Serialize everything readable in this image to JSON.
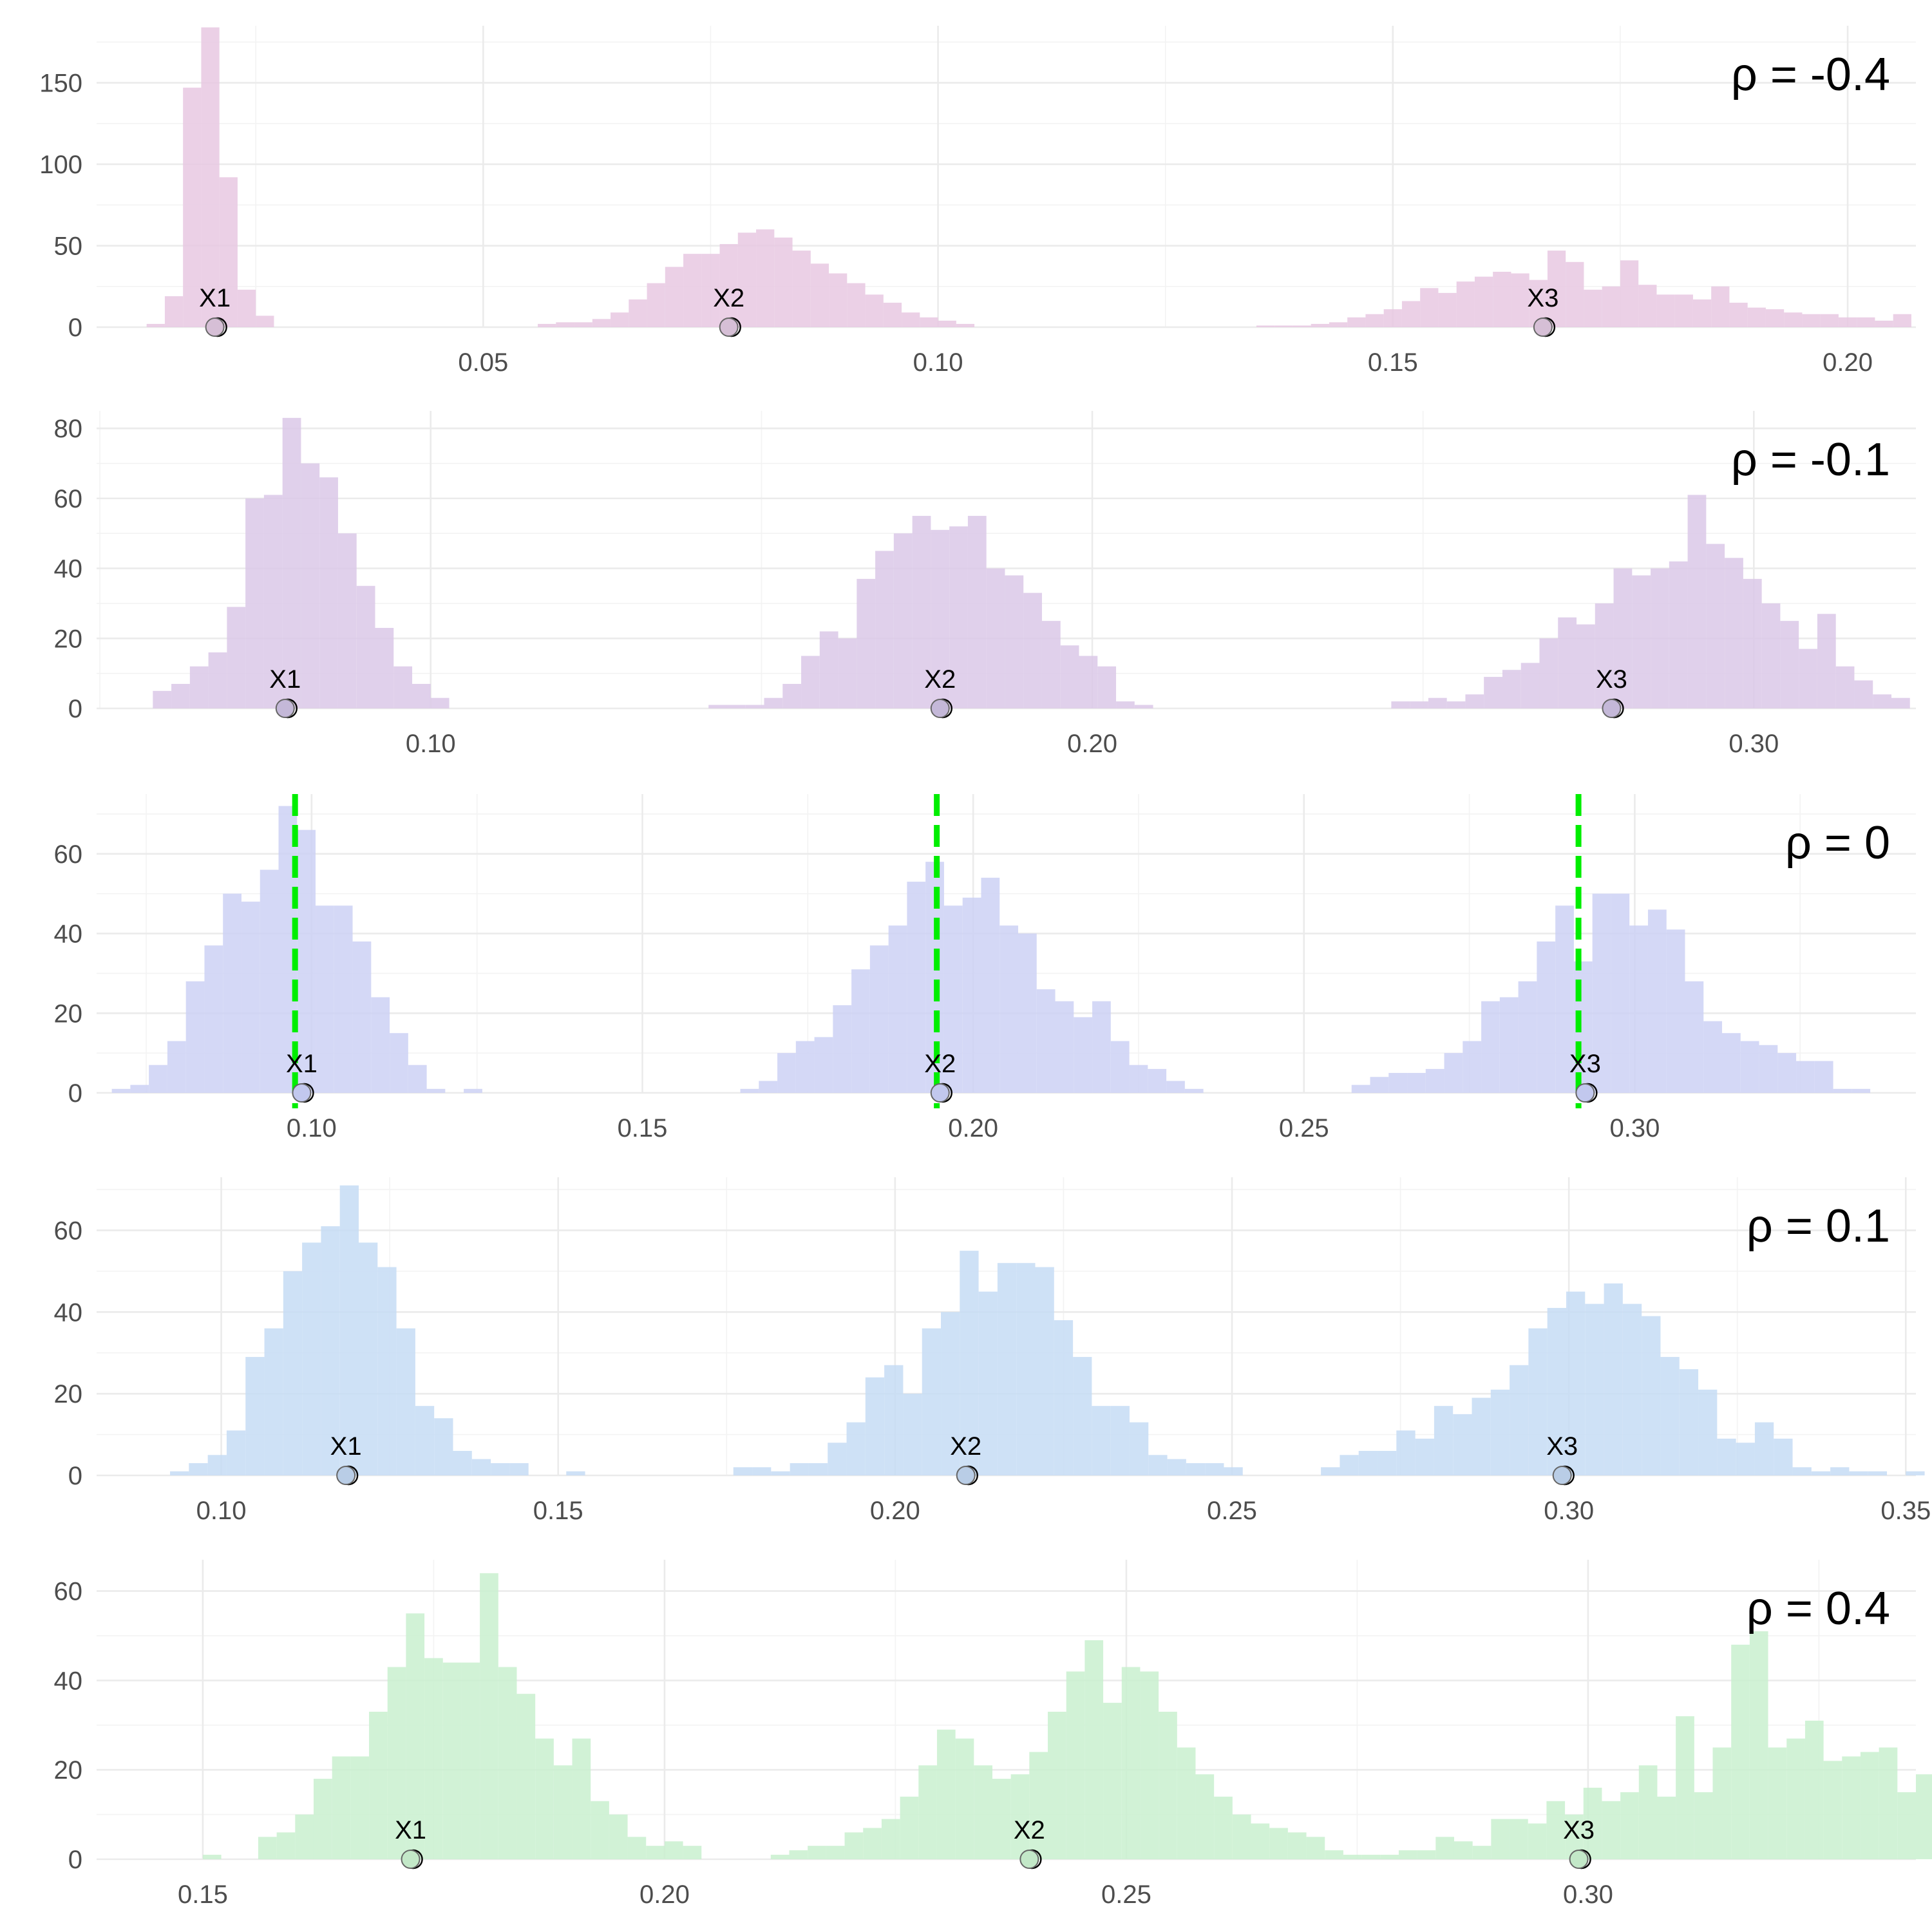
{
  "chart_data": [
    {
      "type": "bar",
      "rho_label": "ρ =  -0.4",
      "color": "#e8c8e2",
      "xlim": [
        0.0075,
        0.2075
      ],
      "ylim": [
        0,
        185
      ],
      "x_ticks": [
        0.05,
        0.1,
        0.15,
        0.2
      ],
      "x_tick_labels": [
        "0.05",
        "0.10",
        "0.15",
        "0.20"
      ],
      "y_ticks": [
        0,
        50,
        100,
        150
      ],
      "y_tick_labels": [
        "0",
        "50",
        "100",
        "150"
      ],
      "bin_width": 0.002,
      "bins": [
        {
          "center": 0.014,
          "values": [
            2,
            19,
            147,
            184,
            92,
            23,
            7
          ]
        },
        {
          "center": 0.057,
          "values": [
            2,
            3,
            3,
            5,
            9,
            17,
            27,
            37,
            45,
            45,
            51,
            58,
            60,
            55,
            47,
            39,
            33,
            27,
            20,
            15,
            9,
            6,
            4,
            2
          ]
        },
        {
          "center": 0.136,
          "values": [
            1,
            1,
            1,
            2,
            3,
            6,
            8,
            11,
            16,
            24,
            21,
            28,
            31,
            34,
            33,
            29,
            47,
            40,
            23,
            25,
            41,
            26,
            20,
            20,
            17,
            25,
            15,
            12,
            11,
            9,
            8,
            8,
            6,
            6,
            4,
            8
          ]
        }
      ],
      "points": [
        {
          "label": "X1",
          "x": 0.0205
        },
        {
          "label": "X2",
          "x": 0.077
        },
        {
          "label": "X3",
          "x": 0.1665
        }
      ],
      "vlines": []
    },
    {
      "type": "bar",
      "rho_label": "ρ =  -0.1",
      "color": "#dac8e8",
      "xlim": [
        0.0495,
        0.3245
      ],
      "ylim": [
        0,
        85
      ],
      "x_ticks": [
        0.1,
        0.2,
        0.3
      ],
      "x_tick_labels": [
        "0.10",
        "0.20",
        "0.30"
      ],
      "y_ticks": [
        0,
        20,
        40,
        60,
        80
      ],
      "y_tick_labels": [
        "0",
        "20",
        "40",
        "60",
        "80"
      ],
      "bin_width": 0.0028,
      "bins": [
        {
          "center": 0.0594,
          "values": [
            5,
            7,
            12,
            16,
            29,
            60,
            61,
            83,
            70,
            66,
            50,
            35,
            23,
            12,
            7,
            3
          ]
        },
        {
          "center": 0.1434,
          "values": [
            1,
            1,
            1,
            3,
            7,
            15,
            22,
            20,
            37,
            45,
            50,
            55,
            51,
            52,
            55,
            40,
            38,
            33,
            25,
            18,
            15,
            12,
            2,
            1
          ]
        },
        {
          "center": 0.2466,
          "values": [
            2,
            2,
            3,
            2,
            4,
            9,
            11,
            13,
            20,
            26,
            24,
            30,
            40,
            38,
            40,
            42,
            61,
            47,
            43,
            37,
            30,
            25,
            17,
            27,
            12,
            8,
            4,
            3
          ]
        }
      ],
      "points": [
        {
          "label": "X1",
          "x": 0.078
        },
        {
          "label": "X2",
          "x": 0.177
        },
        {
          "label": "X3",
          "x": 0.2785
        }
      ],
      "vlines": []
    },
    {
      "type": "bar",
      "rho_label": "ρ =  0",
      "color": "#cdd1f4",
      "xlim": [
        0.0675,
        0.3425
      ],
      "ylim": [
        0,
        75
      ],
      "x_ticks": [
        0.1,
        0.15,
        0.2,
        0.25,
        0.3
      ],
      "x_tick_labels": [
        "0.10",
        "0.15",
        "0.20",
        "0.25",
        "0.30"
      ],
      "y_ticks": [
        0,
        20,
        40,
        60
      ],
      "y_tick_labels": [
        "0",
        "20",
        "40",
        "60"
      ],
      "bin_width": 0.0028,
      "bins": [
        {
          "center": 0.0712,
          "values": [
            1,
            2,
            7,
            13,
            28,
            37,
            50,
            48,
            56,
            72,
            66,
            47,
            47,
            38,
            24,
            15,
            7,
            1,
            0,
            1
          ]
        },
        {
          "center": 0.1662,
          "values": [
            1,
            3,
            10,
            13,
            14,
            22,
            31,
            37,
            42,
            53,
            58,
            47,
            49,
            54,
            42,
            40,
            26,
            23,
            19,
            23,
            13,
            7,
            6,
            3,
            1
          ]
        },
        {
          "center": 0.2586,
          "values": [
            2,
            4,
            5,
            5,
            6,
            10,
            13,
            23,
            24,
            28,
            38,
            47,
            33,
            50,
            50,
            42,
            46,
            41,
            28,
            18,
            15,
            13,
            12,
            10,
            8,
            8,
            1,
            1
          ]
        }
      ],
      "points": [
        {
          "label": "X1",
          "x": 0.0985
        },
        {
          "label": "X2",
          "x": 0.195
        },
        {
          "label": "X3",
          "x": 0.2925
        }
      ],
      "vlines": [
        0.0975,
        0.1945,
        0.2915
      ]
    },
    {
      "type": "bar",
      "rho_label": "ρ =  0.1",
      "color": "#c5dcf4",
      "xlim": [
        0.0815,
        0.3515
      ],
      "ylim": [
        0,
        73
      ],
      "x_ticks": [
        0.1,
        0.15,
        0.2,
        0.25,
        0.3,
        0.35
      ],
      "x_tick_labels": [
        "0.10",
        "0.15",
        "0.20",
        "0.25",
        "0.30",
        "0.35"
      ],
      "y_ticks": [
        0,
        20,
        40,
        60
      ],
      "y_tick_labels": [
        "0",
        "20",
        "40",
        "60"
      ],
      "bin_width": 0.0028,
      "bins": [
        {
          "center": 0.0938,
          "values": [
            1,
            3,
            5,
            11,
            29,
            36,
            50,
            57,
            61,
            71,
            57,
            51,
            36,
            17,
            14,
            6,
            4,
            3,
            3,
            0,
            0,
            1
          ]
        },
        {
          "center": 0.1774,
          "values": [
            2,
            2,
            1,
            3,
            3,
            8,
            13,
            24,
            27,
            20,
            36,
            40,
            55,
            45,
            52,
            52,
            51,
            38,
            29,
            17,
            17,
            13,
            5,
            4,
            3,
            3,
            2
          ]
        },
        {
          "center": 0.2646,
          "values": [
            2,
            5,
            6,
            6,
            11,
            9,
            17,
            15,
            19,
            21,
            27,
            36,
            41,
            45,
            42,
            47,
            42,
            39,
            29,
            26,
            21,
            9,
            8,
            13,
            9,
            2,
            1,
            2,
            1,
            1,
            0,
            1
          ]
        }
      ],
      "points": [
        {
          "label": "X1",
          "x": 0.1185
        },
        {
          "label": "X2",
          "x": 0.2105
        },
        {
          "label": "X3",
          "x": 0.299
        }
      ],
      "vlines": []
    },
    {
      "type": "bar",
      "rho_label": "ρ =  0.4",
      "color": "#c9f0cf",
      "xlim": [
        0.1385,
        0.3355
      ],
      "ylim": [
        0,
        67
      ],
      "x_ticks": [
        0.15,
        0.2,
        0.25,
        0.3
      ],
      "x_tick_labels": [
        "0.15",
        "0.20",
        "0.25",
        "0.30"
      ],
      "y_ticks": [
        0,
        20,
        40,
        60
      ],
      "y_tick_labels": [
        "0",
        "20",
        "40",
        "60"
      ],
      "bin_width": 0.002,
      "bins": [
        {
          "center": 0.151,
          "values": [
            1,
            0,
            0,
            5,
            6,
            10,
            18,
            23,
            23,
            33,
            43,
            55,
            45,
            44,
            44,
            64,
            43,
            37,
            27,
            21,
            27,
            13,
            10,
            5,
            3,
            4,
            3
          ]
        },
        {
          "center": 0.2125,
          "values": [
            1,
            2,
            3,
            3,
            6,
            7,
            9,
            14,
            21,
            29,
            27,
            21,
            18,
            19,
            24,
            33,
            42,
            49,
            35,
            43,
            42,
            33,
            25,
            19,
            14,
            10,
            8,
            7,
            6,
            5,
            2,
            1,
            1,
            1,
            2,
            2,
            5,
            4,
            3,
            9,
            9,
            8,
            13,
            10,
            16,
            13,
            15,
            21,
            14,
            32,
            15,
            25,
            48,
            51,
            25,
            27,
            31,
            22,
            23,
            24,
            25,
            15,
            19,
            17,
            10,
            9,
            8,
            6,
            5,
            4,
            3,
            1,
            1
          ]
        }
      ],
      "points": [
        {
          "label": "X1",
          "x": 0.1725
        },
        {
          "label": "X2",
          "x": 0.2395
        },
        {
          "label": "X3",
          "x": 0.299
        }
      ],
      "vlines": []
    }
  ]
}
